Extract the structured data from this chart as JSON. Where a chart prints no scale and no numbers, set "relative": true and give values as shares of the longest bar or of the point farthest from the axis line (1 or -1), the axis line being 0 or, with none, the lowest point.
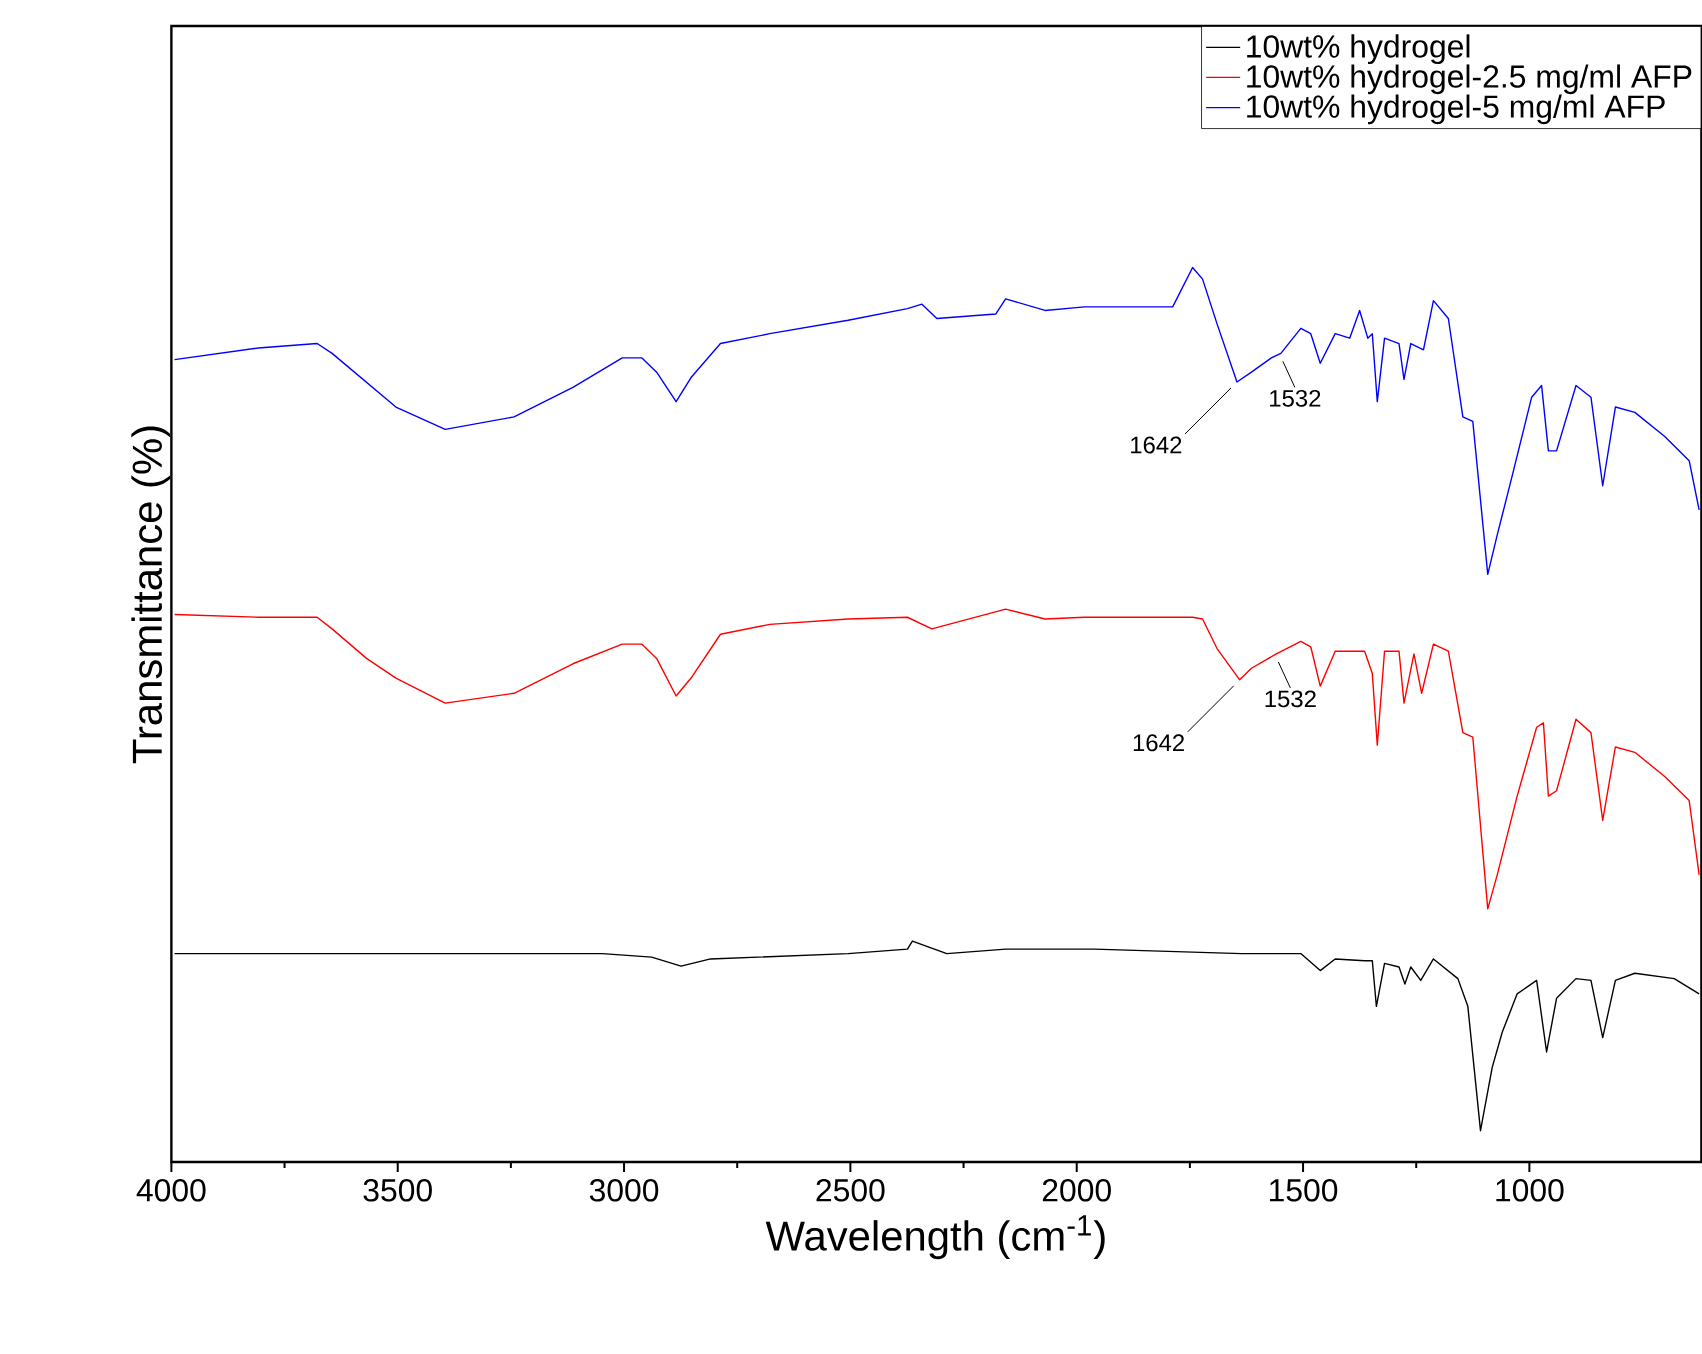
{
  "chart_data": {
    "type": "line",
    "relative": true,
    "xlabel": "Wavelength (cm$^{-1}$)",
    "ylabel": "Transmittance (%)",
    "xlim": [
      4000,
      620
    ],
    "xticks": [
      4000,
      3500,
      3000,
      2500,
      2000,
      1500,
      1000
    ],
    "tick_labels": "x",
    "legend": "top right",
    "series": [
      {
        "name": "10wt% hydrogel",
        "color": "#000000",
        "x": [
          3993,
          3591,
          3048,
          2939,
          2874,
          2809,
          2505,
          2374,
          2363,
          2287,
          2157,
          1961,
          1636,
          1505,
          1462,
          1429,
          1364,
          1347,
          1338,
          1320,
          1288,
          1275,
          1262,
          1240,
          1212,
          1158,
          1136,
          1108,
          1082,
          1060,
          1027,
          984,
          962,
          940,
          897,
          864,
          838,
          810,
          767,
          680,
          625
        ],
        "values": [
          0.233,
          0.233,
          0.233,
          0.229,
          0.219,
          0.227,
          0.233,
          0.238,
          0.247,
          0.233,
          0.238,
          0.238,
          0.233,
          0.233,
          0.214,
          0.227,
          0.225,
          0.225,
          0.174,
          0.222,
          0.218,
          0.199,
          0.218,
          0.203,
          0.227,
          0.205,
          0.174,
          0.035,
          0.106,
          0.145,
          0.188,
          0.203,
          0.123,
          0.183,
          0.205,
          0.203,
          0.139,
          0.203,
          0.211,
          0.205,
          0.188
        ]
      },
      {
        "name": "10wt% hydrogel-2.5 mg/ml AFP",
        "color": "#ff0000",
        "x": [
          3993,
          3808,
          3678,
          3645,
          3569,
          3504,
          3395,
          3243,
          3113,
          3004,
          2961,
          2928,
          2885,
          2852,
          2787,
          2678,
          2505,
          2374,
          2320,
          2157,
          2070,
          1983,
          1744,
          1722,
          1690,
          1640,
          1614,
          1559,
          1505,
          1483,
          1462,
          1429,
          1364,
          1347,
          1336,
          1320,
          1288,
          1277,
          1255,
          1238,
          1212,
          1179,
          1147,
          1125,
          1092,
          1071,
          1060,
          1027,
          984,
          969,
          958,
          940,
          897,
          864,
          838,
          810,
          767,
          701,
          647,
          625
        ],
        "values": [
          0.612,
          0.609,
          0.609,
          0.596,
          0.563,
          0.541,
          0.513,
          0.524,
          0.557,
          0.579,
          0.579,
          0.563,
          0.521,
          0.541,
          0.59,
          0.601,
          0.607,
          0.609,
          0.596,
          0.618,
          0.607,
          0.609,
          0.609,
          0.607,
          0.574,
          0.539,
          0.552,
          0.568,
          0.582,
          0.576,
          0.532,
          0.571,
          0.571,
          0.546,
          0.466,
          0.571,
          0.571,
          0.513,
          0.568,
          0.524,
          0.579,
          0.571,
          0.48,
          0.475,
          0.283,
          0.321,
          0.343,
          0.409,
          0.486,
          0.491,
          0.409,
          0.415,
          0.495,
          0.48,
          0.382,
          0.464,
          0.458,
          0.431,
          0.404,
          0.321
        ]
      },
      {
        "name": "10wt% hydrogel-5 mg/ml AFP",
        "color": "#0000ff",
        "x": [
          3993,
          3808,
          3678,
          3645,
          3504,
          3395,
          3243,
          3113,
          3004,
          2961,
          2928,
          2885,
          2852,
          2787,
          2678,
          2505,
          2374,
          2342,
          2309,
          2179,
          2157,
          2070,
          1983,
          1788,
          1744,
          1722,
          1690,
          1646,
          1614,
          1570,
          1549,
          1505,
          1483,
          1462,
          1429,
          1397,
          1375,
          1357,
          1347,
          1336,
          1320,
          1288,
          1277,
          1262,
          1234,
          1212,
          1179,
          1147,
          1125,
          1092,
          1071,
          1060,
          1038,
          995,
          973,
          958,
          940,
          897,
          864,
          838,
          810,
          767,
          701,
          647,
          625
        ],
        "values": [
          0.897,
          0.91,
          0.915,
          0.904,
          0.844,
          0.819,
          0.833,
          0.866,
          0.899,
          0.899,
          0.883,
          0.85,
          0.877,
          0.915,
          0.926,
          0.941,
          0.954,
          0.959,
          0.943,
          0.948,
          0.965,
          0.952,
          0.956,
          0.956,
          1.0,
          0.987,
          0.937,
          0.872,
          0.883,
          0.899,
          0.904,
          0.932,
          0.926,
          0.893,
          0.926,
          0.921,
          0.952,
          0.921,
          0.926,
          0.85,
          0.921,
          0.915,
          0.875,
          0.915,
          0.908,
          0.963,
          0.943,
          0.833,
          0.828,
          0.657,
          0.701,
          0.723,
          0.767,
          0.855,
          0.868,
          0.795,
          0.795,
          0.868,
          0.855,
          0.756,
          0.844,
          0.838,
          0.811,
          0.784,
          0.729
        ]
      }
    ],
    "annotations": [
      {
        "text": "1642",
        "x": 1646,
        "y": 0.872
      },
      {
        "text": "1532",
        "x": 1549,
        "y": 0.904
      },
      {
        "text": "1642",
        "x": 1640,
        "y": 0.539
      },
      {
        "text": "1532",
        "x": 1559,
        "y": 0.568
      }
    ]
  }
}
